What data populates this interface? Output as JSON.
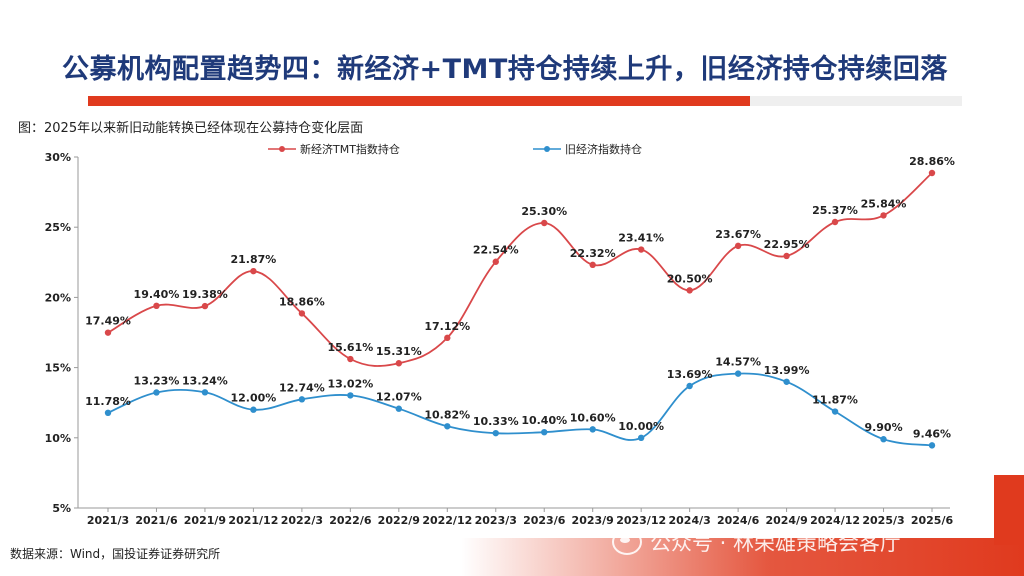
{
  "page": {
    "title": "公募机构配置趋势四：新经济+TMT持仓持续上升，旧经济持仓持续回落",
    "caption": "图：2025年以来新旧动能转换已经体现在公募持仓变化层面",
    "source": "数据来源：Wind，国投证券证券研究所",
    "watermark": "公众号 · 林荣雄策略会客厅"
  },
  "colors": {
    "accent_red": "#e03a1e",
    "title_navy": "#1f3a7a",
    "series_new": "#d9484a",
    "series_old": "#2f8fcd"
  },
  "chart_data": {
    "type": "line",
    "title": "",
    "xlabel": "",
    "ylabel": "",
    "ylim": [
      5,
      30
    ],
    "yticks": [
      "5%",
      "10%",
      "15%",
      "20%",
      "25%",
      "30%"
    ],
    "grid": false,
    "legend_position": "top",
    "categories": [
      "2021/3",
      "2021/6",
      "2021/9",
      "2021/12",
      "2022/3",
      "2022/6",
      "2022/9",
      "2022/12",
      "2023/3",
      "2023/6",
      "2023/9",
      "2023/12",
      "2024/3",
      "2024/6",
      "2024/9",
      "2024/12",
      "2025/3",
      "2025/6"
    ],
    "series": [
      {
        "name": "新经济TMT指数持仓",
        "color": "#d9484a",
        "values": [
          17.49,
          19.4,
          19.38,
          21.87,
          18.86,
          15.61,
          15.31,
          17.12,
          22.54,
          25.3,
          22.32,
          23.41,
          20.5,
          23.67,
          22.95,
          25.37,
          25.84,
          28.86
        ],
        "labels": [
          "17.49%",
          "19.40%",
          "19.38%",
          "21.87%",
          "18.86%",
          "15.61%",
          "15.31%",
          "17.12%",
          "22.54%",
          "25.30%",
          "22.32%",
          "23.41%",
          "20.50%",
          "23.67%",
          "22.95%",
          "25.37%",
          "25.84%",
          "28.86%"
        ]
      },
      {
        "name": "旧经济指数持仓",
        "color": "#2f8fcd",
        "values": [
          11.78,
          13.23,
          13.24,
          12.0,
          12.74,
          13.02,
          12.07,
          10.82,
          10.33,
          10.4,
          10.6,
          10.0,
          13.69,
          14.57,
          13.99,
          11.87,
          9.9,
          9.46
        ],
        "labels": [
          "11.78%",
          "13.23%",
          "13.24%",
          "12.00%",
          "12.74%",
          "13.02%",
          "12.07%",
          "10.82%",
          "10.33%",
          "10.40%",
          "10.60%",
          "10.00%",
          "13.69%",
          "14.57%",
          "13.99%",
          "11.87%",
          "9.90%",
          "9.46%"
        ]
      }
    ]
  }
}
